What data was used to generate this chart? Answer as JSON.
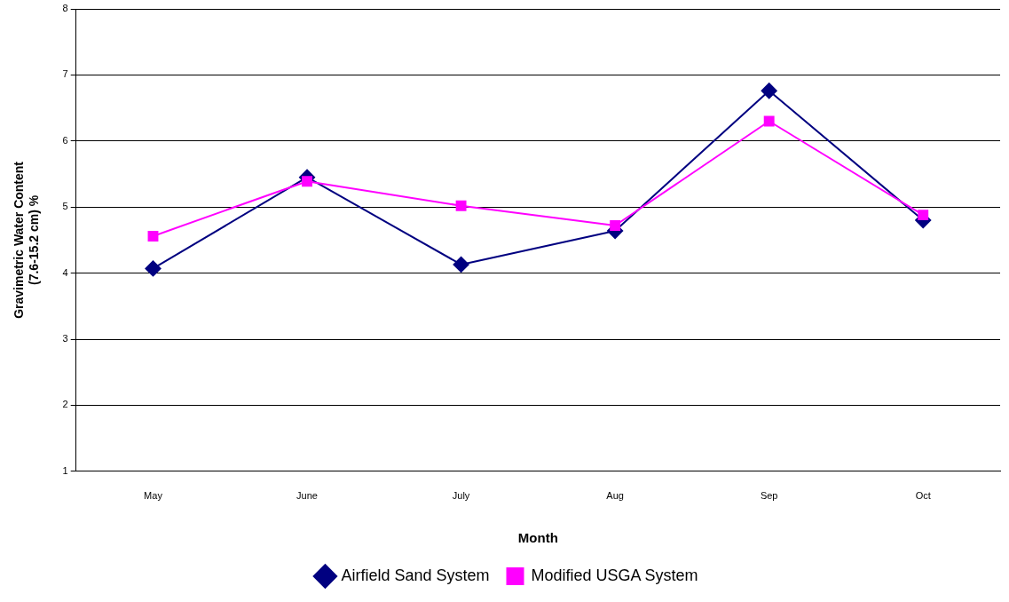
{
  "chart_data": {
    "type": "line",
    "xlabel": "Month",
    "ylabel": "Gravimetric Water Content\n(7.6-15.2 cm) %",
    "categories": [
      "May",
      "June",
      "July",
      "Aug",
      "Sep",
      "Oct"
    ],
    "series": [
      {
        "name": "Airfield Sand System",
        "color": "#000080",
        "marker": "diamond",
        "values": [
          4.07,
          5.45,
          4.13,
          4.64,
          6.76,
          4.8
        ]
      },
      {
        "name": "Modified USGA System",
        "color": "#ff00ff",
        "marker": "square",
        "values": [
          4.56,
          5.39,
          5.02,
          4.72,
          6.3,
          4.88
        ]
      }
    ],
    "ylim": [
      1,
      8
    ],
    "yticks": [
      1,
      2,
      3,
      4,
      5,
      6,
      7,
      8
    ],
    "grid": "y",
    "legend": "bottom",
    "line_style": "solid"
  }
}
